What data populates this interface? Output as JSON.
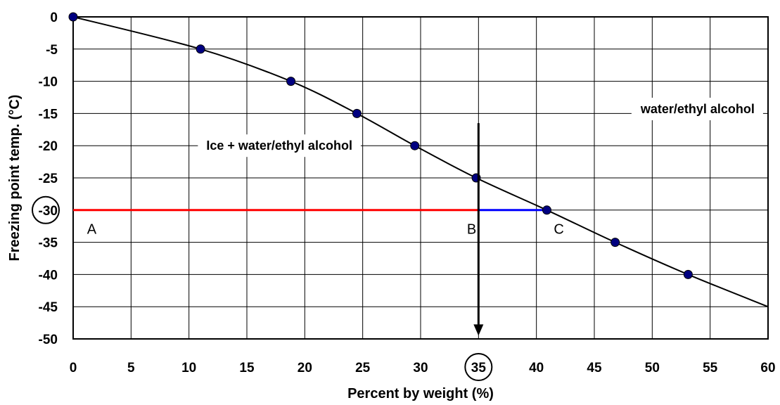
{
  "chart_data": {
    "type": "line",
    "title": "",
    "xlabel": "Percent by weight (%)",
    "ylabel": "Freezing point temp. (°C)",
    "xlim": [
      0,
      60
    ],
    "ylim": [
      -50,
      0
    ],
    "xticks": [
      0,
      5,
      10,
      15,
      20,
      25,
      30,
      35,
      40,
      45,
      50,
      55,
      60
    ],
    "yticks": [
      0,
      -5,
      -10,
      -15,
      -20,
      -25,
      -30,
      -35,
      -40,
      -45,
      -50
    ],
    "grid": true,
    "series": [
      {
        "points": [
          {
            "x": 0,
            "y": 0
          },
          {
            "x": 11,
            "y": -5
          },
          {
            "x": 18.8,
            "y": -10
          },
          {
            "x": 24.5,
            "y": -15
          },
          {
            "x": 29.5,
            "y": -20
          },
          {
            "x": 34.8,
            "y": -25
          },
          {
            "x": 40.9,
            "y": -30
          },
          {
            "x": 46.8,
            "y": -35
          },
          {
            "x": 53.1,
            "y": -40
          }
        ],
        "curve_end": {
          "x": 60,
          "y": -45
        },
        "color": "#000000",
        "marker_color": "#000080"
      }
    ],
    "annotations": {
      "regions": [
        {
          "text": "Ice + water/ethyl alcohol",
          "x": 11.5,
          "y": -20
        },
        {
          "text": "water/ethyl alcohol",
          "x": 49,
          "y": -14.3
        }
      ],
      "red_line": {
        "x1": 0,
        "x2": 35,
        "y": -30,
        "color": "#ff0000"
      },
      "blue_line": {
        "x1": 35,
        "x2": 40.9,
        "y": -30,
        "color": "#0000ff"
      },
      "arrow": {
        "x": 35,
        "y_start": -16.5,
        "y_end": -49.5,
        "color": "#000000"
      },
      "point_labels": [
        {
          "text": "A",
          "x": 1.2,
          "y": -32.9
        },
        {
          "text": "B",
          "x": 34,
          "y": -32.9
        },
        {
          "text": "C",
          "x": 41.5,
          "y": -32.9
        }
      ],
      "circled_x_tick": 35,
      "circled_y_tick": -30
    }
  }
}
